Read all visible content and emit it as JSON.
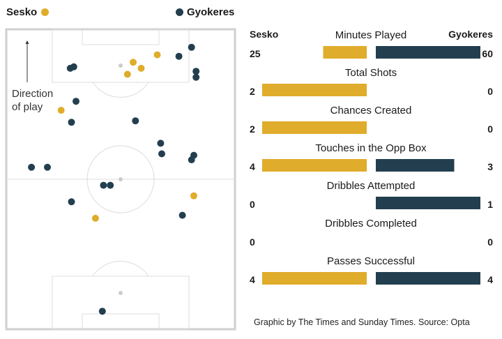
{
  "legend": {
    "sesko_label": "Sesko",
    "gyokeres_label": "Gyokeres"
  },
  "colors": {
    "sesko": "#e0ac2b",
    "gyokeres": "#233f4f",
    "ball_marker": "#cccccc",
    "pitch_line": "#dcdcdc",
    "pitch_border": "#cfcfcf"
  },
  "pitch": {
    "direction_line1": "Direction",
    "direction_line2": "of play"
  },
  "header": {
    "sesko": "Sesko",
    "gyokeres": "Gyokeres"
  },
  "source": "Graphic by The Times and Sunday Times. Source: Opta",
  "chart_data": [
    {
      "type": "scatter",
      "title": "",
      "x_range": [
        0,
        100
      ],
      "y_range": [
        0,
        100
      ],
      "y_note": "x: across pitch width, y: along pitch length toward attacking goal (top)",
      "series": [
        {
          "name": "Sesko",
          "points": [
            [
              66,
              91.5
            ],
            [
              55.5,
              89
            ],
            [
              59,
              87
            ],
            [
              53,
              85
            ],
            [
              24,
              73
            ],
            [
              82,
              44.5
            ],
            [
              39,
              37
            ]
          ]
        },
        {
          "name": "Gyokeres",
          "points": [
            [
              81,
              94
            ],
            [
              75.5,
              91
            ],
            [
              28,
              87
            ],
            [
              29.5,
              87.5
            ],
            [
              83,
              86
            ],
            [
              83,
              84
            ],
            [
              30.5,
              76
            ],
            [
              56.5,
              69.5
            ],
            [
              28.5,
              69
            ],
            [
              67.5,
              62
            ],
            [
              82,
              58
            ],
            [
              11,
              54
            ],
            [
              18,
              54
            ],
            [
              68,
              58.5
            ],
            [
              81,
              56.5
            ],
            [
              42.5,
              48
            ],
            [
              45.5,
              48
            ],
            [
              28.5,
              42.5
            ],
            [
              77,
              38
            ],
            [
              42,
              6
            ]
          ]
        }
      ]
    },
    {
      "type": "bar",
      "title": "",
      "orientation": "horizontal-diverging",
      "categories": [
        "Minutes Played",
        "Total Shots",
        "Chances Created",
        "Touches in the Opp Box",
        "Dribbles Attempted",
        "Dribbles Completed",
        "Passes Successful"
      ],
      "series": [
        {
          "name": "Sesko",
          "values": [
            25,
            2,
            2,
            4,
            0,
            0,
            4
          ]
        },
        {
          "name": "Gyokeres",
          "values": [
            60,
            0,
            0,
            3,
            1,
            0,
            4
          ]
        }
      ],
      "scale_note": "Each stat row is scaled independently to its own maximum"
    }
  ]
}
